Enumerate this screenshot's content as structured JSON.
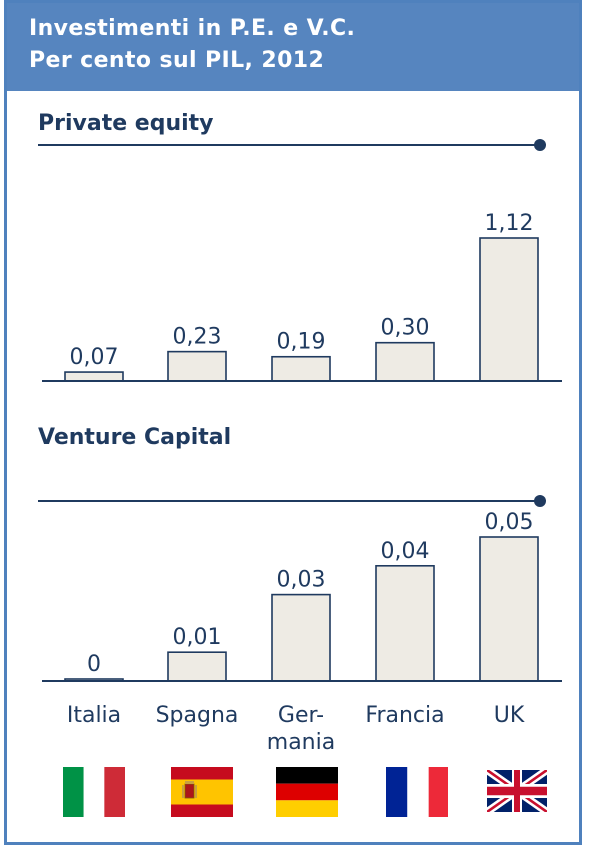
{
  "header": {
    "title_line1": "Investimenti in P.E. e V.C.",
    "title_line2": "Per cento sul PIL, 2012"
  },
  "colors": {
    "header_bg": "#5685bf",
    "frame_border": "#4f81bd",
    "bar_fill": "#eeebe4",
    "bar_stroke": "#1f3a5f",
    "text": "#1f3a5f"
  },
  "countries": [
    "Italia",
    "Spagna",
    "Ger-\nmania",
    "Francia",
    "UK"
  ],
  "flags": [
    "italy-flag-icon",
    "spain-flag-icon",
    "germany-flag-icon",
    "france-flag-icon",
    "uk-flag-icon"
  ],
  "chart_data": [
    {
      "type": "bar",
      "title": "Private equity",
      "categories": [
        "Italia",
        "Spagna",
        "Germania",
        "Francia",
        "UK"
      ],
      "values": [
        0.07,
        0.23,
        0.19,
        0.3,
        1.12
      ],
      "labels": [
        "0,07",
        "0,23",
        "0,19",
        "0,30",
        "1,12"
      ],
      "ylim": [
        0,
        1.12
      ]
    },
    {
      "type": "bar",
      "title": "Venture Capital",
      "categories": [
        "Italia",
        "Spagna",
        "Germania",
        "Francia",
        "UK"
      ],
      "values": [
        0,
        0.01,
        0.03,
        0.04,
        0.05
      ],
      "labels": [
        "0",
        "0,01",
        "0,03",
        "0,04",
        "0,05"
      ],
      "ylim": [
        0,
        0.05
      ]
    }
  ]
}
